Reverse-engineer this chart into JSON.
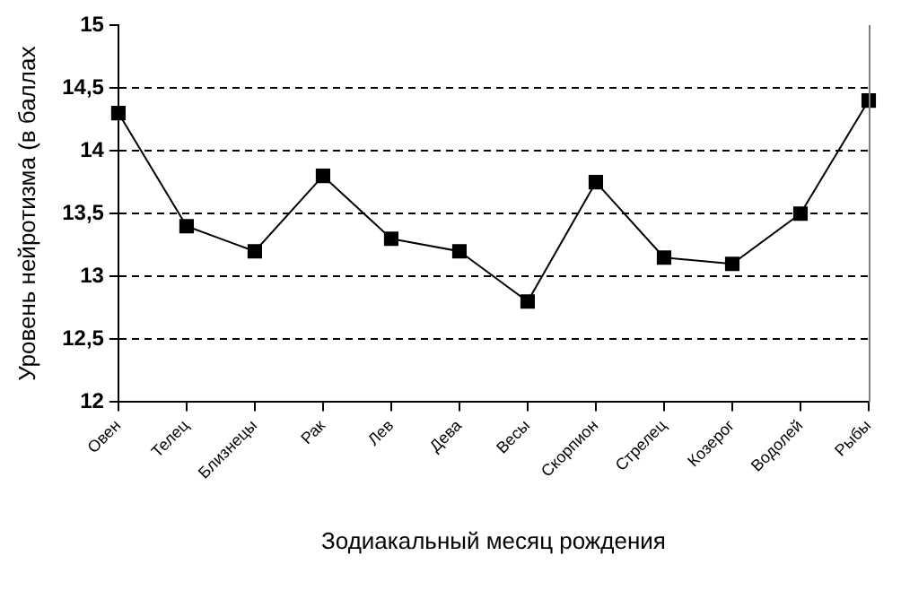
{
  "chart_data": {
    "type": "line",
    "xlabel": "Зодиакальный месяц рождения",
    "ylabel": "Уровень нейротизма (в баллах",
    "categories": [
      "Овен",
      "Телец",
      "Близнецы",
      "Рак",
      "Лев",
      "Дева",
      "Весы",
      "Скорпион",
      "Стрелец",
      "Козерог",
      "Водолей",
      "Рыбы"
    ],
    "series": [
      {
        "color": "#000000",
        "values": [
          14.3,
          13.4,
          13.2,
          13.8,
          13.3,
          13.2,
          12.8,
          13.75,
          13.15,
          13.1,
          13.5,
          14.4
        ]
      }
    ],
    "ylim": [
      12,
      15
    ],
    "yticks": [
      {
        "value": 12,
        "label": "12"
      },
      {
        "value": 12.5,
        "label": "12,5"
      },
      {
        "value": 13,
        "label": "13"
      },
      {
        "value": 13.5,
        "label": "13,5"
      },
      {
        "value": 14,
        "label": "14"
      },
      {
        "value": 14.5,
        "label": "14,5"
      },
      {
        "value": 15,
        "label": "15"
      }
    ],
    "grid": "y",
    "legend": false,
    "marker": "square",
    "line_style": "solid"
  }
}
